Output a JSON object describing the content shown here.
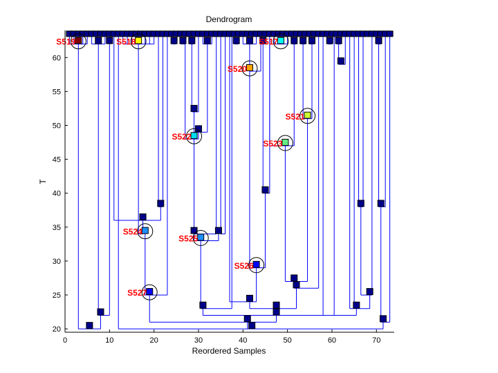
{
  "chart_data": {
    "type": "dendrogram",
    "title": "Dendrogram",
    "xlabel": "Reordered Samples",
    "ylabel": "T",
    "xlim": [
      0,
      74
    ],
    "ylim": [
      19.5,
      64
    ],
    "xticks": [
      0,
      10,
      20,
      30,
      40,
      50,
      60,
      70
    ],
    "yticks": [
      20,
      25,
      30,
      35,
      40,
      45,
      50,
      55,
      60
    ],
    "grid": false,
    "colors": {
      "link": "#0000ff",
      "node": "#00008b",
      "node_edge": "#000000",
      "label": "#ff0000",
      "circle": "#000000"
    },
    "leaf_level": 63.5,
    "leaves_x": [
      1,
      2,
      3,
      4,
      5,
      6,
      7,
      8,
      9,
      10,
      11,
      12,
      13,
      14,
      15,
      16,
      17,
      18,
      19,
      20,
      21,
      22,
      23,
      24,
      25,
      26,
      27,
      28,
      29,
      30,
      31,
      32,
      33,
      34,
      35,
      36,
      37,
      38,
      39,
      40,
      41,
      42,
      43,
      44,
      45,
      46,
      47,
      48,
      49,
      50,
      51,
      52,
      53,
      54,
      55,
      56,
      57,
      58,
      59,
      60,
      61,
      62,
      63,
      64,
      65,
      66,
      67,
      68,
      69,
      70,
      71,
      72,
      73
    ],
    "merges": [
      {
        "id": "a",
        "x": 3,
        "t": 62.5,
        "children": [
          1,
          2,
          3,
          4,
          5
        ]
      },
      {
        "id": "b",
        "x": 7.5,
        "t": 62.5,
        "children": [
          6,
          7,
          8,
          9
        ]
      },
      {
        "id": "c",
        "x": 10,
        "t": 62.5,
        "children": [
          10
        ]
      },
      {
        "id": "d",
        "x": 16.5,
        "t": 62.5,
        "children": [
          13,
          14,
          15,
          16,
          17,
          18,
          19,
          20
        ]
      },
      {
        "id": "e",
        "x": 24.5,
        "t": 62.5,
        "children": [
          24,
          25
        ]
      },
      {
        "id": "f",
        "x": 26.5,
        "t": 62.5,
        "children": [
          26,
          27
        ]
      },
      {
        "id": "g",
        "x": 28.5,
        "t": 62.5,
        "children": [
          28,
          29
        ]
      },
      {
        "id": "h",
        "x": 32,
        "t": 62.5,
        "children": [
          31,
          32,
          33
        ]
      },
      {
        "id": "i",
        "x": 38.5,
        "t": 62.5,
        "children": [
          38,
          39
        ]
      },
      {
        "id": "j",
        "x": 41.5,
        "t": 62.5,
        "children": [
          40,
          41,
          42,
          43
        ]
      },
      {
        "id": "k",
        "x": 44.5,
        "t": 62.5,
        "children": [
          44,
          45
        ]
      },
      {
        "id": "l",
        "x": 48.5,
        "t": 62.5,
        "children": [
          47,
          48,
          49,
          50
        ]
      },
      {
        "id": "m",
        "x": 51.5,
        "t": 62.5,
        "children": [
          51,
          52
        ]
      },
      {
        "id": "n",
        "x": 53.5,
        "t": 62.5,
        "children": [
          53,
          54
        ]
      },
      {
        "id": "o",
        "x": 55.5,
        "t": 62.5,
        "children": [
          55,
          56
        ]
      },
      {
        "id": "p",
        "x": 59.5,
        "t": 62.5,
        "children": [
          59,
          60
        ]
      },
      {
        "id": "q",
        "x": 61.5,
        "t": 62.5,
        "children": [
          61,
          62
        ]
      },
      {
        "id": "r",
        "x": 70.5,
        "t": 62.5,
        "children": [
          70,
          71
        ]
      },
      {
        "id": "s",
        "x": 62,
        "t": 59.5,
        "children": [
          "q",
          63
        ]
      },
      {
        "id": "t",
        "x": 41.5,
        "t": 58.5,
        "children": [
          "j",
          44
        ]
      },
      {
        "id": "u",
        "x": 29,
        "t": 52.5,
        "children": [
          "g",
          30
        ]
      },
      {
        "id": "v",
        "x": 54.5,
        "t": 51.5,
        "children": [
          "n",
          "o"
        ]
      },
      {
        "id": "w",
        "x": 30,
        "t": 49.5,
        "children": [
          "u",
          "h"
        ]
      },
      {
        "id": "x",
        "x": 29,
        "t": 48.5,
        "children": [
          27,
          "w"
        ]
      },
      {
        "id": "y",
        "x": 49.5,
        "t": 47.5,
        "children": [
          "m",
          46
        ]
      },
      {
        "id": "z",
        "x": 45,
        "t": 40.5,
        "children": [
          "k",
          46
        ]
      },
      {
        "id": "aa",
        "x": 66.5,
        "t": 38.5,
        "children": [
          66,
          67
        ]
      },
      {
        "id": "ab",
        "x": 71,
        "t": 38.5,
        "children": [
          "r",
          72
        ]
      },
      {
        "id": "ac",
        "x": 21.5,
        "t": 38.5,
        "children": [
          21,
          22
        ]
      },
      {
        "id": "ad",
        "x": 17.5,
        "t": 36.5,
        "children": [
          11,
          "ac"
        ]
      },
      {
        "id": "ae",
        "x": 18,
        "t": 34.5,
        "children": [
          "d",
          "ad"
        ]
      },
      {
        "id": "af",
        "x": 29,
        "t": 34.5,
        "children": [
          "x",
          34
        ]
      },
      {
        "id": "ag",
        "x": 34.5,
        "t": 34.5,
        "children": [
          35,
          36
        ]
      },
      {
        "id": "ah",
        "x": 30.5,
        "t": 33.5,
        "children": [
          "af",
          "ag"
        ]
      },
      {
        "id": "ai",
        "x": 43,
        "t": 29.5,
        "children": [
          "t",
          "z"
        ]
      },
      {
        "id": "aj",
        "x": 51.5,
        "t": 27.5,
        "children": [
          "y",
          "v"
        ]
      },
      {
        "id": "ak",
        "x": 52,
        "t": 26.5,
        "children": [
          "aj",
          57
        ]
      },
      {
        "id": "al",
        "x": 19,
        "t": 25.5,
        "children": [
          "ae",
          23
        ]
      },
      {
        "id": "am",
        "x": 68.5,
        "t": 25.5,
        "children": [
          "aa",
          69
        ]
      },
      {
        "id": "an",
        "x": 8,
        "t": 22.5,
        "children": [
          "b",
          "c"
        ]
      },
      {
        "id": "ao",
        "x": 41.5,
        "t": 24.5,
        "children": [
          37,
          "ai"
        ]
      },
      {
        "id": "ap",
        "x": 31,
        "t": 23.5,
        "children": [
          "ah",
          37.5
        ]
      },
      {
        "id": "aq",
        "x": 47.5,
        "t": 23.5,
        "children": [
          "ao",
          "ak"
        ]
      },
      {
        "id": "ar",
        "x": 65.5,
        "t": 23.5,
        "children": [
          64,
          65,
          "am"
        ]
      },
      {
        "id": "as",
        "x": 47.5,
        "t": 22.5,
        "children": [
          "ap",
          "aq",
          58,
          60.5,
          "ar"
        ]
      },
      {
        "id": "at",
        "x": 71.5,
        "t": 21.5,
        "children": [
          "ab",
          73
        ]
      },
      {
        "id": "au",
        "x": 41,
        "t": 21.5,
        "children": [
          "al",
          "as"
        ]
      },
      {
        "id": "av",
        "x": 5.5,
        "t": 20.5,
        "children": [
          "a",
          "an"
        ]
      },
      {
        "id": "aw",
        "x": 42,
        "t": 20.5,
        "children": [
          12,
          "au",
          "at"
        ]
      }
    ],
    "annotations": [
      {
        "label": "S519",
        "x": 3,
        "t": 62.5,
        "color": "#800000"
      },
      {
        "label": "S518",
        "x": 16.5,
        "t": 62.5,
        "color": "#ffff00"
      },
      {
        "label": "S517",
        "x": 48.5,
        "t": 62.5,
        "color": "#00ffff"
      },
      {
        "label": "S520",
        "x": 41.5,
        "t": 58.5,
        "color": "#ffa500"
      },
      {
        "label": "S521",
        "x": 54.5,
        "t": 51.5,
        "color": "#ccff33"
      },
      {
        "label": "S522",
        "x": 29,
        "t": 48.5,
        "color": "#00ddee"
      },
      {
        "label": "S523",
        "x": 49.5,
        "t": 47.5,
        "color": "#66ee88"
      },
      {
        "label": "S524",
        "x": 18,
        "t": 34.5,
        "color": "#1e90ff"
      },
      {
        "label": "S525",
        "x": 30.5,
        "t": 33.5,
        "color": "#1e90ff"
      },
      {
        "label": "S526",
        "x": 43,
        "t": 29.5,
        "color": "#0000ff"
      },
      {
        "label": "S527",
        "x": 19,
        "t": 25.5,
        "color": "#0000ff"
      }
    ]
  }
}
